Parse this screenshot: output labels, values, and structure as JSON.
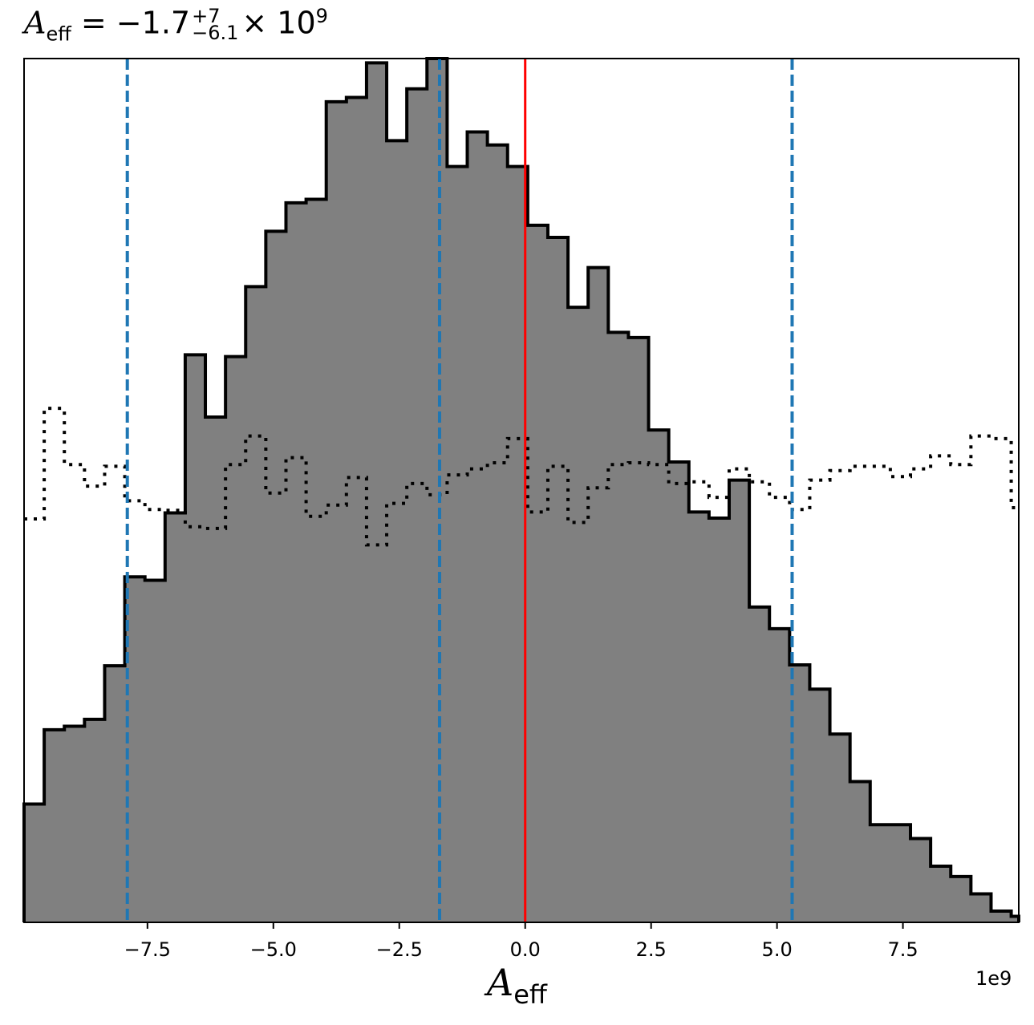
{
  "title": {
    "symbol": "A",
    "subscript": "eff",
    "equals": "=",
    "value": "−1.7",
    "plus_err": "+7",
    "minus_err": "−6.1",
    "multiplier": "× 10",
    "exponent": "9"
  },
  "colors": {
    "hist_fill": "#808080",
    "hist_edge": "#000000",
    "prior_line": "#000000",
    "quantile_lines": "#1f77b4",
    "truth_line": "#ff0000"
  },
  "chart_data": {
    "type": "bar",
    "xlabel": "A_eff",
    "xlabel_symbol": "A",
    "xlabel_subscript": "eff",
    "x_offset_label": "1e9",
    "xlim": [
      -9.95,
      9.8
    ],
    "ylim": [
      0,
      1.0
    ],
    "y_ticks_shown": false,
    "grid": false,
    "x_ticks": [
      -7.5,
      -5.0,
      -2.5,
      0.0,
      2.5,
      5.0,
      7.5
    ],
    "x_tick_labels": [
      "−7.5",
      "−5.0",
      "−2.5",
      "0.0",
      "2.5",
      "5.0",
      "7.5"
    ],
    "bin_edges": [
      -9.95,
      -9.55,
      -9.15,
      -8.75,
      -8.35,
      -7.95,
      -7.55,
      -7.15,
      -6.75,
      -6.35,
      -5.95,
      -5.55,
      -5.15,
      -4.75,
      -4.35,
      -3.95,
      -3.55,
      -3.15,
      -2.75,
      -2.35,
      -1.95,
      -1.55,
      -1.15,
      -0.75,
      -0.35,
      0.05,
      0.45,
      0.85,
      1.25,
      1.65,
      2.05,
      2.45,
      2.85,
      3.25,
      3.65,
      4.05,
      4.45,
      4.85,
      5.25,
      5.65,
      6.05,
      6.45,
      6.85,
      7.25,
      7.65,
      8.05,
      8.45,
      8.85,
      9.25,
      9.65,
      9.8
    ],
    "series": [
      {
        "values": [
          0.137,
          0.223,
          0.227,
          0.235,
          0.297,
          0.4,
          0.396,
          0.474,
          0.657,
          0.585,
          0.655,
          0.736,
          0.8,
          0.833,
          0.837,
          0.95,
          0.955,
          0.995,
          0.905,
          0.965,
          1.0,
          0.875,
          0.915,
          0.9,
          0.875,
          0.807,
          0.793,
          0.712,
          0.758,
          0.683,
          0.677,
          0.57,
          0.533,
          0.475,
          0.468,
          0.512,
          0.365,
          0.34,
          0.298,
          0.27,
          0.218,
          0.163,
          0.113,
          0.113,
          0.097,
          0.065,
          0.053,
          0.033,
          0.013,
          0.007
        ]
      },
      {
        "values": [
          0.467,
          0.595,
          0.53,
          0.505,
          0.528,
          0.488,
          0.478,
          0.477,
          0.458,
          0.456,
          0.53,
          0.563,
          0.497,
          0.538,
          0.47,
          0.483,
          0.515,
          0.437,
          0.485,
          0.508,
          0.495,
          0.518,
          0.525,
          0.532,
          0.56,
          0.475,
          0.528,
          0.463,
          0.503,
          0.53,
          0.532,
          0.53,
          0.508,
          0.51,
          0.492,
          0.525,
          0.51,
          0.492,
          0.478,
          0.512,
          0.523,
          0.528,
          0.528,
          0.516,
          0.525,
          0.54,
          0.53,
          0.563,
          0.56,
          0.48
        ]
      }
    ],
    "vlines_dashed": [
      -7.9,
      -1.7,
      5.3
    ],
    "vline_solid": 0.0
  }
}
